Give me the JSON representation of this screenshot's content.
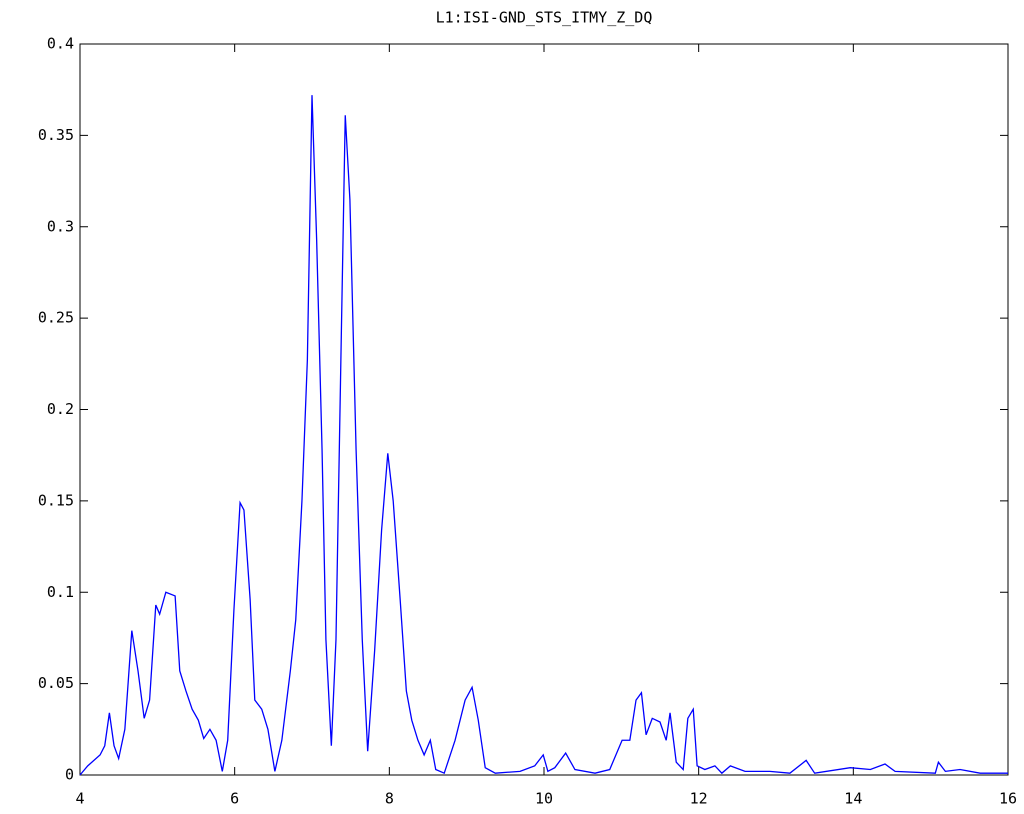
{
  "chart_data": {
    "type": "line",
    "title": "L1:ISI-GND_STS_ITMY_Z_DQ",
    "x": [
      4,
      4.1,
      4.26,
      4.32,
      4.38,
      4.44,
      4.5,
      4.58,
      4.67,
      4.75,
      4.83,
      4.9,
      4.98,
      5.03,
      5.11,
      5.23,
      5.29,
      5.37,
      5.45,
      5.53,
      5.6,
      5.68,
      5.76,
      5.84,
      5.91,
      5.99,
      6.07,
      6.12,
      6.2,
      6.26,
      6.35,
      6.43,
      6.52,
      6.61,
      6.72,
      6.79,
      6.87,
      6.94,
      7.0,
      7.06,
      7.13,
      7.18,
      7.25,
      7.31,
      7.38,
      7.43,
      7.49,
      7.57,
      7.65,
      7.72,
      7.81,
      7.9,
      7.98,
      8.05,
      8.14,
      8.22,
      8.29,
      8.37,
      8.45,
      8.53,
      8.6,
      8.71,
      8.85,
      8.98,
      9.07,
      9.15,
      9.24,
      9.37,
      9.69,
      9.88,
      9.99,
      10.05,
      10.14,
      10.28,
      10.4,
      10.66,
      10.85,
      11.01,
      11.11,
      11.19,
      11.26,
      11.32,
      11.4,
      11.5,
      11.58,
      11.63,
      11.71,
      11.8,
      11.86,
      11.93,
      11.98,
      12.08,
      12.21,
      12.3,
      12.41,
      12.6,
      12.92,
      13.18,
      13.39,
      13.5,
      13.96,
      14.22,
      14.41,
      14.54,
      15.06,
      15.1,
      15.19,
      15.38,
      15.64,
      16
    ],
    "series": [
      {
        "color": "#0000ff",
        "values": [
          0,
          0.005,
          0.011,
          0.016,
          0.034,
          0.016,
          0.009,
          0.025,
          0.079,
          0.057,
          0.031,
          0.041,
          0.093,
          0.088,
          0.1,
          0.098,
          0.057,
          0.046,
          0.036,
          0.03,
          0.02,
          0.025,
          0.019,
          0.002,
          0.019,
          0.09,
          0.149,
          0.145,
          0.096,
          0.041,
          0.036,
          0.025,
          0.002,
          0.019,
          0.057,
          0.085,
          0.15,
          0.227,
          0.372,
          0.293,
          0.178,
          0.074,
          0.016,
          0.074,
          0.243,
          0.361,
          0.315,
          0.178,
          0.074,
          0.013,
          0.068,
          0.134,
          0.176,
          0.15,
          0.096,
          0.046,
          0.03,
          0.019,
          0.011,
          0.019,
          0.003,
          0.001,
          0.019,
          0.041,
          0.048,
          0.03,
          0.004,
          0.001,
          0.002,
          0.005,
          0.011,
          0.002,
          0.004,
          0.012,
          0.003,
          0.001,
          0.003,
          0.019,
          0.019,
          0.041,
          0.045,
          0.022,
          0.031,
          0.029,
          0.019,
          0.034,
          0.007,
          0.003,
          0.031,
          0.036,
          0.005,
          0.003,
          0.005,
          0.001,
          0.005,
          0.002,
          0.002,
          0.001,
          0.008,
          0.001,
          0.004,
          0.003,
          0.006,
          0.002,
          0.001,
          0.007,
          0.002,
          0.003,
          0.001,
          0.001
        ]
      }
    ],
    "xlim": [
      4,
      16
    ],
    "xticks": [
      4,
      6,
      8,
      10,
      12,
      14,
      16
    ],
    "ylim": [
      0,
      0.4
    ],
    "yticks": [
      0,
      0.05,
      0.1,
      0.15,
      0.2,
      0.25,
      0.3,
      0.35,
      0.4
    ]
  }
}
